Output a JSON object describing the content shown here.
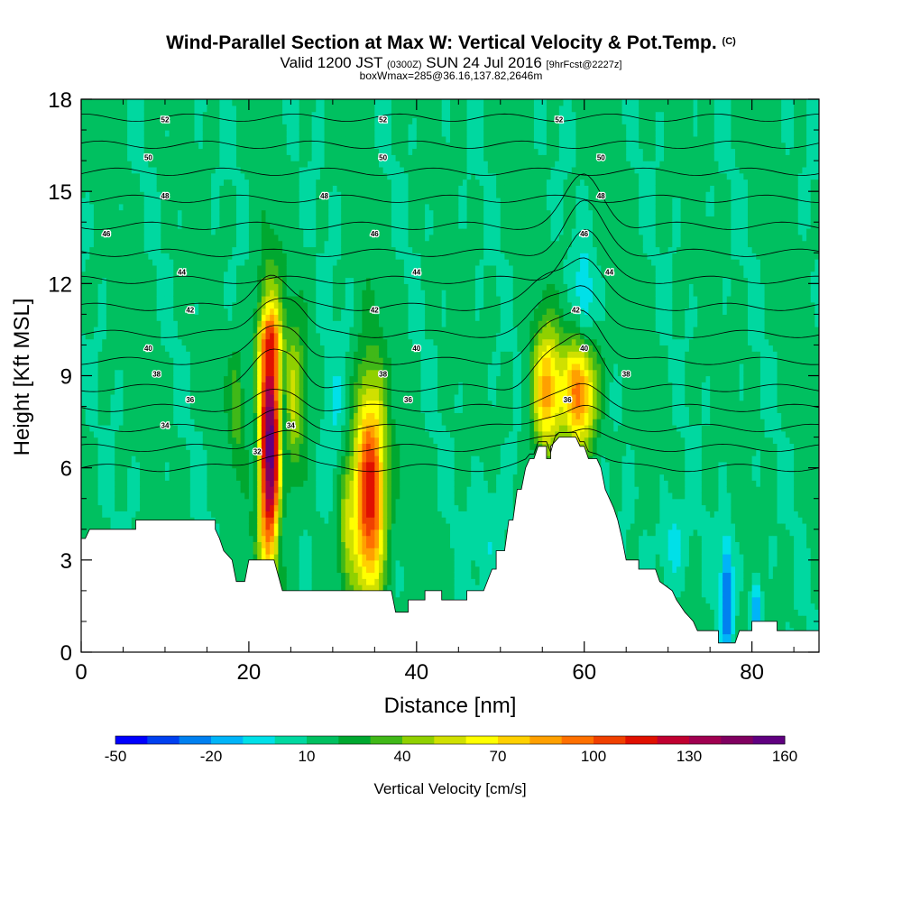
{
  "header": {
    "title": "Wind-Parallel Section at Max W: Vertical Velocity & Pot.Temp.",
    "copyright": "(C)",
    "subtitle_main": "Valid 1200 JST",
    "subtitle_utc": "(0300Z)",
    "subtitle_date": "SUN 24 Jul 2016",
    "subtitle_fcst": "[9hrFcst@2227z]",
    "subtitle2": "boxWmax=285@36.16,137.82,2646m"
  },
  "chart_data": {
    "type": "heatmap",
    "xlabel": "Distance [nm]",
    "ylabel": "Height [Kft MSL]",
    "xlim": [
      0,
      88
    ],
    "ylim": [
      0,
      18
    ],
    "x_ticks": [
      "0",
      "20",
      "40",
      "60",
      "80"
    ],
    "y_ticks": [
      "0",
      "3",
      "6",
      "9",
      "12",
      "15",
      "18"
    ],
    "colorbar": {
      "label": "Vertical Velocity [cm/s]",
      "ticks": [
        "-50",
        "-20",
        "10",
        "40",
        "70",
        "100",
        "130",
        "160"
      ],
      "colors": [
        "#0000ff",
        "#0040f0",
        "#0080f0",
        "#00b4f8",
        "#00e0e8",
        "#00d8a0",
        "#00c060",
        "#00a830",
        "#40b818",
        "#90d000",
        "#d0e000",
        "#ffff00",
        "#ffd000",
        "#ffa000",
        "#ff7000",
        "#f04000",
        "#e01000",
        "#c00030",
        "#a00050",
        "#800060",
        "#600080"
      ]
    },
    "terrain": [
      [
        0,
        3.7
      ],
      [
        0.5,
        3.7
      ],
      [
        1,
        4.0
      ],
      [
        6.5,
        4.0
      ],
      [
        6.5,
        4.3
      ],
      [
        16,
        4.3
      ],
      [
        16,
        4.0
      ],
      [
        16.5,
        3.7
      ],
      [
        17,
        3.3
      ],
      [
        18,
        3.0
      ],
      [
        18.5,
        2.3
      ],
      [
        19.5,
        2.3
      ],
      [
        20,
        3.0
      ],
      [
        23,
        3.0
      ],
      [
        24,
        2.0
      ],
      [
        37,
        2.0
      ],
      [
        37.5,
        1.3
      ],
      [
        39,
        1.3
      ],
      [
        39,
        1.7
      ],
      [
        41,
        1.7
      ],
      [
        41,
        2.0
      ],
      [
        43,
        2.0
      ],
      [
        43,
        1.7
      ],
      [
        46,
        1.7
      ],
      [
        46,
        2.0
      ],
      [
        48,
        2.0
      ],
      [
        49,
        2.7
      ],
      [
        49.5,
        2.7
      ],
      [
        49.5,
        3.3
      ],
      [
        50.5,
        3.3
      ],
      [
        51,
        4.3
      ],
      [
        51.5,
        4.3
      ],
      [
        52,
        5.3
      ],
      [
        52.5,
        5.3
      ],
      [
        53,
        6.0
      ],
      [
        53.5,
        6.3
      ],
      [
        54,
        6.3
      ],
      [
        54.5,
        6.7
      ],
      [
        55.5,
        6.7
      ],
      [
        55.5,
        6.3
      ],
      [
        56,
        6.3
      ],
      [
        56,
        6.7
      ],
      [
        57,
        7.0
      ],
      [
        59,
        7.0
      ],
      [
        59.5,
        6.7
      ],
      [
        60,
        6.7
      ],
      [
        60.5,
        6.3
      ],
      [
        61.5,
        6.3
      ],
      [
        62,
        6.0
      ],
      [
        62.5,
        5.3
      ],
      [
        63.5,
        4.7
      ],
      [
        64,
        4.3
      ],
      [
        64.5,
        3.7
      ],
      [
        65,
        3.0
      ],
      [
        66.5,
        3.0
      ],
      [
        66.5,
        2.7
      ],
      [
        68.5,
        2.7
      ],
      [
        69,
        2.3
      ],
      [
        70.5,
        2.0
      ],
      [
        71,
        1.7
      ],
      [
        72,
        1.3
      ],
      [
        73,
        1.0
      ],
      [
        73.5,
        0.7
      ],
      [
        76,
        0.7
      ],
      [
        76,
        0.3
      ],
      [
        78,
        0.3
      ],
      [
        78.5,
        0.7
      ],
      [
        80,
        0.7
      ],
      [
        80,
        1.0
      ],
      [
        83,
        1.0
      ],
      [
        83,
        0.7
      ],
      [
        88,
        0.7
      ]
    ],
    "theta_labels": [
      {
        "value": 52,
        "x": [
          10,
          36,
          57
        ]
      },
      {
        "value": 50,
        "x": [
          8,
          36,
          62
        ]
      },
      {
        "value": 48,
        "x": [
          10,
          29,
          62
        ]
      },
      {
        "value": 46,
        "x": [
          3,
          35,
          60
        ]
      },
      {
        "value": 44,
        "x": [
          12,
          40,
          63
        ]
      },
      {
        "value": 42,
        "x": [
          13,
          35,
          59
        ]
      },
      {
        "value": 40,
        "x": [
          8,
          40,
          60
        ]
      },
      {
        "value": 38,
        "x": [
          9,
          36,
          65
        ]
      },
      {
        "value": 36,
        "x": [
          13,
          39,
          58
        ]
      },
      {
        "value": 34,
        "x": [
          10,
          25
        ]
      },
      {
        "value": 32,
        "x": [
          21
        ]
      }
    ],
    "updrafts": [
      {
        "x": 22.5,
        "y": 6.8,
        "sx": 1.1,
        "sy": 2.9,
        "w": 150
      },
      {
        "x": 34.5,
        "y": 5.2,
        "sx": 1.5,
        "sy": 2.5,
        "w": 110
      },
      {
        "x": 59.5,
        "y": 8.5,
        "sx": 1.4,
        "sy": 1.3,
        "w": 85
      },
      {
        "x": 55.5,
        "y": 8.5,
        "sx": 1.2,
        "sy": 1.5,
        "w": 70
      },
      {
        "x": 25.5,
        "y": 8.3,
        "sx": 0.8,
        "sy": 1.8,
        "w": 35
      },
      {
        "x": 18.5,
        "y": 8.0,
        "sx": 0.6,
        "sy": 1.2,
        "w": 25
      },
      {
        "x": 31.5,
        "y": 4.5,
        "sx": 0.8,
        "sy": 1.5,
        "w": 30
      },
      {
        "x": 22.5,
        "y": 10.2,
        "sx": 1.0,
        "sy": 0.6,
        "w": 30
      }
    ],
    "downdrafts": [
      {
        "x": 21.0,
        "y": 6.5,
        "sx": 0.6,
        "sy": 2.0,
        "w": -30
      },
      {
        "x": 24.0,
        "y": 7.5,
        "sx": 0.5,
        "sy": 1.5,
        "w": -40
      },
      {
        "x": 23.7,
        "y": 4.0,
        "sx": 0.6,
        "sy": 1.0,
        "w": -25
      },
      {
        "x": 30.5,
        "y": 6.5,
        "sx": 1.4,
        "sy": 2.2,
        "w": -15
      },
      {
        "x": 36.5,
        "y": 5.0,
        "sx": 1.0,
        "sy": 2.5,
        "w": -15
      },
      {
        "x": 60.0,
        "y": 11.2,
        "sx": 0.8,
        "sy": 1.3,
        "w": -25
      },
      {
        "x": 77.0,
        "y": 1.8,
        "sx": 0.5,
        "sy": 1.3,
        "w": -45
      },
      {
        "x": 80.5,
        "y": 1.4,
        "sx": 0.4,
        "sy": 0.7,
        "w": -40
      },
      {
        "x": 70.5,
        "y": 3.5,
        "sx": 1.2,
        "sy": 1.0,
        "w": -18
      },
      {
        "x": 49.0,
        "y": 4.0,
        "sx": 1.5,
        "sy": 1.5,
        "w": -12
      }
    ]
  }
}
